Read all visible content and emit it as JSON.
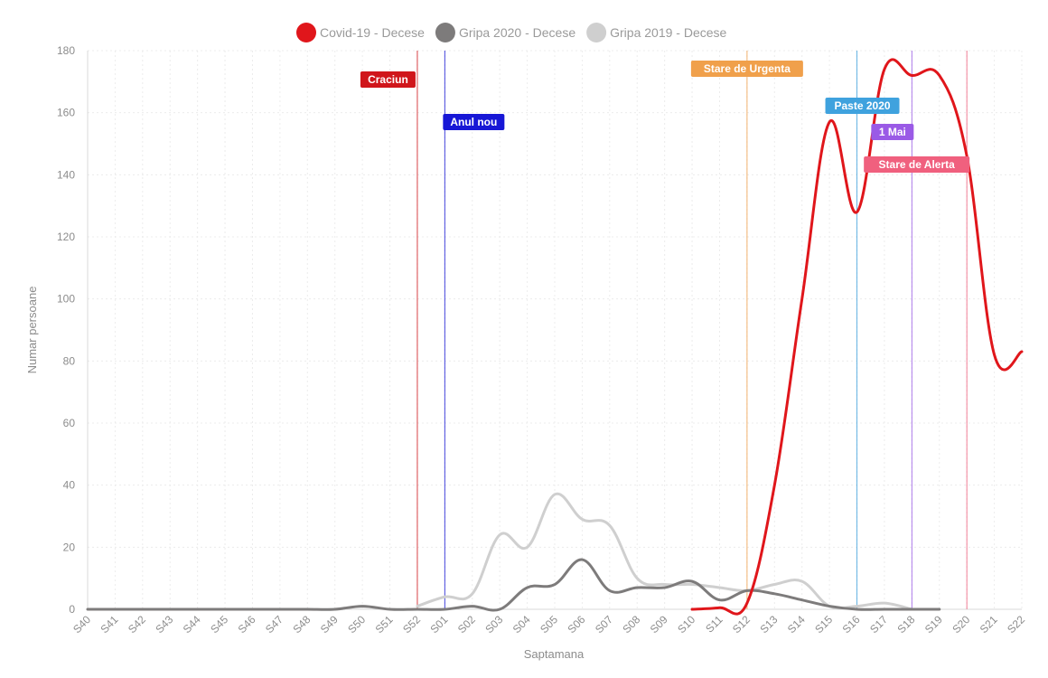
{
  "chart_data": {
    "type": "line",
    "title": "",
    "xlabel": "Saptamana",
    "ylabel": "Numar persoane",
    "ylim": [
      0,
      180
    ],
    "yticks": [
      0,
      20,
      40,
      60,
      80,
      100,
      120,
      140,
      160,
      180
    ],
    "grid": true,
    "legend_position": "top-center",
    "categories": [
      "S40",
      "S41",
      "S42",
      "S43",
      "S44",
      "S45",
      "S46",
      "S47",
      "S48",
      "S49",
      "S50",
      "S51",
      "S52",
      "S01",
      "S02",
      "S03",
      "S04",
      "S05",
      "S06",
      "S07",
      "S08",
      "S09",
      "S10",
      "S11",
      "S12",
      "S13",
      "S14",
      "S15",
      "S16",
      "S17",
      "S18",
      "S19",
      "S20",
      "S21",
      "S22"
    ],
    "series": [
      {
        "name": "Covid-19 - Decese",
        "color": "#e0161b",
        "values": [
          null,
          null,
          null,
          null,
          null,
          null,
          null,
          null,
          null,
          null,
          null,
          null,
          null,
          null,
          null,
          null,
          null,
          null,
          null,
          null,
          null,
          null,
          0,
          0.5,
          2,
          40,
          100,
          157,
          128,
          174,
          172,
          172,
          146,
          82,
          83
        ]
      },
      {
        "name": "Gripa 2020 - Decese",
        "color": "#7d7b7b",
        "values": [
          0,
          0,
          0,
          0,
          0,
          0,
          0,
          0,
          0,
          0,
          1,
          0,
          0,
          0,
          1,
          0,
          7,
          8,
          16,
          6,
          7,
          7,
          9,
          3,
          6,
          5,
          3,
          1,
          0,
          0,
          0,
          0,
          null,
          null,
          null
        ]
      },
      {
        "name": "Gripa 2019 - Decese",
        "color": "#cfcfcf",
        "values": [
          null,
          null,
          null,
          null,
          null,
          null,
          null,
          null,
          null,
          null,
          null,
          null,
          1,
          4,
          5,
          24,
          20,
          37,
          29,
          27,
          10,
          8,
          8,
          7,
          6,
          8,
          9,
          1,
          1,
          2,
          0,
          null,
          null,
          null,
          null
        ]
      }
    ],
    "annotations": [
      {
        "label": "Craciun",
        "x": "S52",
        "color": "#d0161b"
      },
      {
        "label": "Anul nou",
        "x": "S01",
        "color": "#1717d6"
      },
      {
        "label": "Stare de Urgenta",
        "x": "S12",
        "color": "#f0a04b"
      },
      {
        "label": "Paste 2020",
        "x": "S16",
        "color": "#3fa2de"
      },
      {
        "label": "1 Mai",
        "x": "S18",
        "color": "#9a5ae6"
      },
      {
        "label": "Stare de Alerta",
        "x": "S20",
        "color": "#f0607e"
      }
    ]
  }
}
